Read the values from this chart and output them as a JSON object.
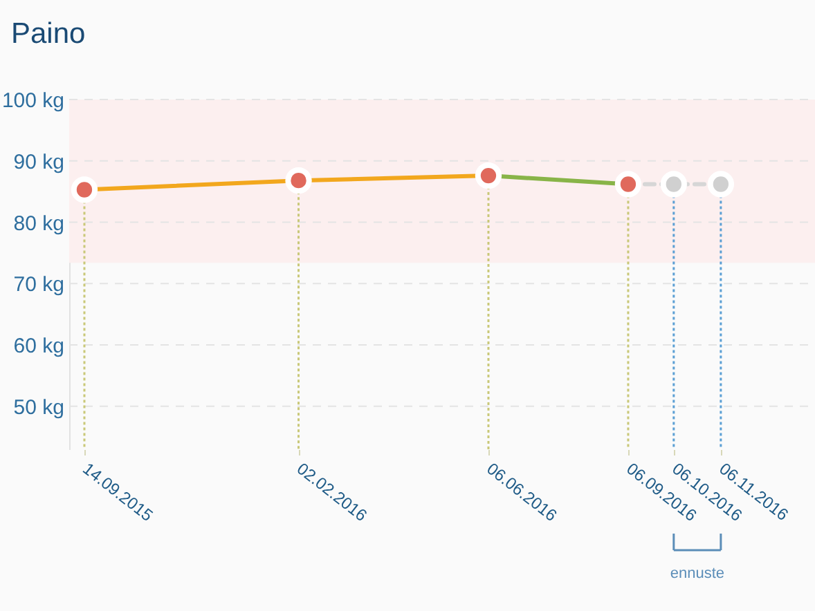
{
  "chart_data": {
    "type": "line",
    "title": "Paino",
    "xlim": [
      "2015-09-04",
      "2017-01-07"
    ],
    "xticks": [
      {
        "value": "2015-09-14",
        "label": "14.09.2015"
      },
      {
        "value": "2016-02-02",
        "label": "02.02.2016"
      },
      {
        "value": "2016-06-06",
        "label": "06.06.2016"
      },
      {
        "value": "2016-09-06",
        "label": "06.09.2016"
      },
      {
        "value": "2016-10-06",
        "label": "06.10.2016"
      },
      {
        "value": "2016-11-06",
        "label": "06.11.2016"
      }
    ],
    "ylim": [
      43,
      100
    ],
    "yticks": [
      {
        "value": 50,
        "label": "50 kg"
      },
      {
        "value": 60,
        "label": "60 kg"
      },
      {
        "value": 70,
        "label": "70 kg"
      },
      {
        "value": 80,
        "label": "80 kg"
      },
      {
        "value": 90,
        "label": "90 kg"
      },
      {
        "value": 100,
        "label": "100 kg"
      }
    ],
    "grid": "y",
    "series": [
      {
        "color": "#f2a71d",
        "marker": "none",
        "x": [
          "2015-09-14",
          "2016-02-02",
          "2016-06-06"
        ],
        "values": [
          85.3,
          86.8,
          87.6
        ]
      },
      {
        "color": "#88b448",
        "marker": "none",
        "x": [
          "2016-06-06",
          "2016-09-06"
        ],
        "values": [
          87.6,
          86.2
        ]
      },
      {
        "color": "#d6d6d6",
        "marker": "none",
        "line_style": "dashed",
        "x": [
          "2016-09-06",
          "2016-10-06",
          "2016-11-06"
        ],
        "values": [
          86.2,
          86.2,
          86.2
        ]
      },
      {
        "type": "scatter",
        "color": "#e0695c",
        "marker": "circle",
        "x": [
          "2015-09-14",
          "2016-02-02",
          "2016-06-06",
          "2016-09-06"
        ],
        "values": [
          85.3,
          86.8,
          87.6,
          86.2
        ]
      },
      {
        "type": "scatter",
        "color": "#d0d0d0",
        "marker": "circle",
        "x": [
          "2016-10-06",
          "2016-11-06"
        ],
        "values": [
          86.2,
          86.2
        ]
      }
    ],
    "bands": [
      {
        "axis": "y",
        "from": 73.4,
        "to": 100,
        "color": "#fcefef"
      }
    ],
    "ref_lines": [
      {
        "axis": "x",
        "value": "2015-09-14",
        "color": "#c9c878",
        "line_style": "dotted"
      },
      {
        "axis": "x",
        "value": "2016-02-02",
        "color": "#c9c878",
        "line_style": "dotted"
      },
      {
        "axis": "x",
        "value": "2016-06-06",
        "color": "#c9c878",
        "line_style": "dotted"
      },
      {
        "axis": "x",
        "value": "2016-09-06",
        "color": "#c9c878",
        "line_style": "dotted"
      },
      {
        "axis": "x",
        "value": "2016-10-06",
        "color": "#5b9fd4",
        "line_style": "dotted"
      },
      {
        "axis": "x",
        "value": "2016-11-06",
        "color": "#5b9fd4",
        "line_style": "dotted"
      }
    ],
    "annotations": [
      "ennuste"
    ]
  }
}
